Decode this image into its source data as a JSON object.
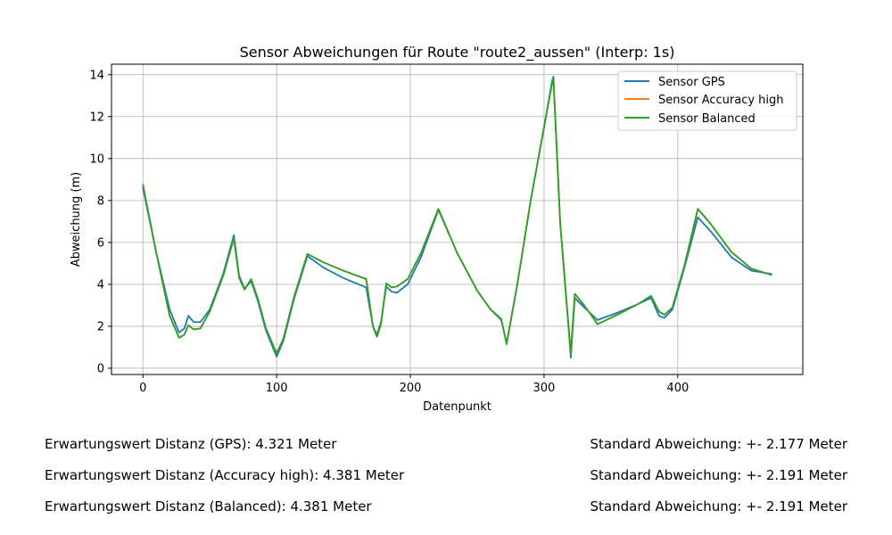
{
  "chart_data": {
    "type": "line",
    "title": "Sensor Abweichungen für Route \"route2_aussen\" (Interp: 1s)",
    "xlabel": "Datenpunkt",
    "ylabel": "Abweichung (m)",
    "xlim": [
      -23.5,
      493.5
    ],
    "ylim": [
      -0.3,
      14.5
    ],
    "xticks": [
      0,
      100,
      200,
      300,
      400
    ],
    "yticks": [
      0,
      2,
      4,
      6,
      8,
      10,
      12,
      14
    ],
    "grid": true,
    "legend_position": "top-right",
    "series": [
      {
        "name": "Sensor GPS",
        "color": "#1f77b4",
        "points": [
          [
            0,
            8.6
          ],
          [
            10,
            5.5
          ],
          [
            20,
            2.8
          ],
          [
            27,
            1.7
          ],
          [
            31,
            1.9
          ],
          [
            34,
            2.5
          ],
          [
            38,
            2.2
          ],
          [
            43,
            2.2
          ],
          [
            50,
            2.8
          ],
          [
            60,
            4.5
          ],
          [
            68,
            6.35
          ],
          [
            72,
            4.4
          ],
          [
            76,
            3.8
          ],
          [
            81,
            4.15
          ],
          [
            86,
            3.2
          ],
          [
            92,
            1.8
          ],
          [
            100,
            0.55
          ],
          [
            105,
            1.3
          ],
          [
            113,
            3.3
          ],
          [
            123,
            5.35
          ],
          [
            135,
            4.8
          ],
          [
            150,
            4.3
          ],
          [
            167,
            3.85
          ],
          [
            172,
            2.0
          ],
          [
            175,
            1.6
          ],
          [
            178,
            2.2
          ],
          [
            182,
            3.9
          ],
          [
            186,
            3.65
          ],
          [
            190,
            3.6
          ],
          [
            198,
            4.0
          ],
          [
            208,
            5.3
          ],
          [
            221,
            7.55
          ],
          [
            235,
            5.5
          ],
          [
            250,
            3.7
          ],
          [
            260,
            2.8
          ],
          [
            268,
            2.3
          ],
          [
            272,
            1.2
          ],
          [
            280,
            4.0
          ],
          [
            290,
            8.0
          ],
          [
            300,
            11.5
          ],
          [
            306,
            13.7
          ],
          [
            307,
            13.9
          ],
          [
            312,
            7.0
          ],
          [
            317,
            3.0
          ],
          [
            320,
            0.5
          ],
          [
            323,
            3.35
          ],
          [
            330,
            2.9
          ],
          [
            340,
            2.3
          ],
          [
            355,
            2.65
          ],
          [
            370,
            3.05
          ],
          [
            380,
            3.35
          ],
          [
            386,
            2.5
          ],
          [
            390,
            2.4
          ],
          [
            396,
            2.8
          ],
          [
            405,
            4.8
          ],
          [
            415,
            7.2
          ],
          [
            425,
            6.5
          ],
          [
            440,
            5.3
          ],
          [
            455,
            4.65
          ],
          [
            470,
            4.5
          ]
        ]
      },
      {
        "name": "Sensor Accuracy high",
        "color": "#ff7f0e",
        "points": [
          [
            0,
            8.75
          ],
          [
            10,
            5.5
          ],
          [
            20,
            2.5
          ],
          [
            27,
            1.45
          ],
          [
            31,
            1.6
          ],
          [
            34,
            2.05
          ],
          [
            38,
            1.85
          ],
          [
            43,
            1.9
          ],
          [
            50,
            2.7
          ],
          [
            60,
            4.4
          ],
          [
            68,
            6.2
          ],
          [
            72,
            4.3
          ],
          [
            76,
            3.75
          ],
          [
            81,
            4.25
          ],
          [
            86,
            3.3
          ],
          [
            92,
            1.9
          ],
          [
            100,
            0.7
          ],
          [
            105,
            1.4
          ],
          [
            113,
            3.4
          ],
          [
            123,
            5.45
          ],
          [
            135,
            5.05
          ],
          [
            150,
            4.65
          ],
          [
            167,
            4.25
          ],
          [
            172,
            2.0
          ],
          [
            175,
            1.5
          ],
          [
            178,
            2.1
          ],
          [
            182,
            4.05
          ],
          [
            186,
            3.85
          ],
          [
            190,
            3.9
          ],
          [
            198,
            4.25
          ],
          [
            208,
            5.5
          ],
          [
            221,
            7.6
          ],
          [
            235,
            5.5
          ],
          [
            250,
            3.7
          ],
          [
            260,
            2.8
          ],
          [
            268,
            2.35
          ],
          [
            272,
            1.15
          ],
          [
            280,
            4.0
          ],
          [
            290,
            8.0
          ],
          [
            300,
            11.5
          ],
          [
            306,
            13.6
          ],
          [
            307,
            13.8
          ],
          [
            312,
            7.0
          ],
          [
            317,
            3.0
          ],
          [
            320,
            0.75
          ],
          [
            323,
            3.55
          ],
          [
            330,
            3.0
          ],
          [
            340,
            2.1
          ],
          [
            355,
            2.55
          ],
          [
            370,
            3.05
          ],
          [
            380,
            3.45
          ],
          [
            386,
            2.7
          ],
          [
            390,
            2.55
          ],
          [
            396,
            2.9
          ],
          [
            405,
            4.9
          ],
          [
            415,
            7.6
          ],
          [
            425,
            6.85
          ],
          [
            440,
            5.55
          ],
          [
            455,
            4.75
          ],
          [
            470,
            4.45
          ]
        ]
      },
      {
        "name": "Sensor Balanced",
        "color": "#2ca02c",
        "points": [
          [
            0,
            8.75
          ],
          [
            10,
            5.5
          ],
          [
            20,
            2.5
          ],
          [
            27,
            1.45
          ],
          [
            31,
            1.6
          ],
          [
            34,
            2.05
          ],
          [
            38,
            1.85
          ],
          [
            43,
            1.9
          ],
          [
            50,
            2.7
          ],
          [
            60,
            4.4
          ],
          [
            68,
            6.2
          ],
          [
            72,
            4.3
          ],
          [
            76,
            3.75
          ],
          [
            81,
            4.25
          ],
          [
            86,
            3.3
          ],
          [
            92,
            1.9
          ],
          [
            100,
            0.7
          ],
          [
            105,
            1.4
          ],
          [
            113,
            3.4
          ],
          [
            123,
            5.45
          ],
          [
            135,
            5.05
          ],
          [
            150,
            4.65
          ],
          [
            167,
            4.25
          ],
          [
            172,
            2.0
          ],
          [
            175,
            1.5
          ],
          [
            178,
            2.1
          ],
          [
            182,
            4.05
          ],
          [
            186,
            3.85
          ],
          [
            190,
            3.9
          ],
          [
            198,
            4.25
          ],
          [
            208,
            5.5
          ],
          [
            221,
            7.6
          ],
          [
            235,
            5.5
          ],
          [
            250,
            3.7
          ],
          [
            260,
            2.8
          ],
          [
            268,
            2.35
          ],
          [
            272,
            1.15
          ],
          [
            280,
            4.0
          ],
          [
            290,
            8.0
          ],
          [
            300,
            11.5
          ],
          [
            306,
            13.6
          ],
          [
            307,
            13.8
          ],
          [
            312,
            7.0
          ],
          [
            317,
            3.0
          ],
          [
            320,
            0.75
          ],
          [
            323,
            3.55
          ],
          [
            330,
            3.0
          ],
          [
            340,
            2.1
          ],
          [
            355,
            2.55
          ],
          [
            370,
            3.05
          ],
          [
            380,
            3.45
          ],
          [
            386,
            2.7
          ],
          [
            390,
            2.55
          ],
          [
            396,
            2.9
          ],
          [
            405,
            4.9
          ],
          [
            415,
            7.6
          ],
          [
            425,
            6.85
          ],
          [
            440,
            5.55
          ],
          [
            455,
            4.75
          ],
          [
            470,
            4.45
          ]
        ]
      }
    ]
  },
  "stats": {
    "gps_mean": "Erwartungswert Distanz (GPS): 4.321 Meter",
    "accuracy_mean": "Erwartungswert Distanz (Accuracy high): 4.381 Meter",
    "balanced_mean": "Erwartungswert Distanz (Balanced): 4.381 Meter",
    "gps_std": "Standard Abweichung: +- 2.177 Meter",
    "accuracy_std": "Standard Abweichung: +- 2.191 Meter",
    "balanced_std": "Standard Abweichung: +- 2.191 Meter"
  }
}
